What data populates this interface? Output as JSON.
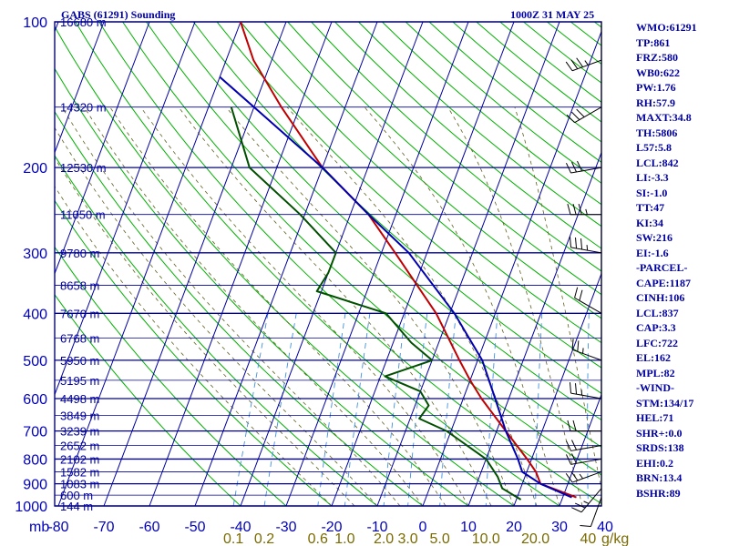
{
  "header": {
    "station": "GABS (61291) Sounding",
    "time": "1000Z 31 MAY 25"
  },
  "axis": {
    "pressure_unit_label": "mb",
    "mixing_ratio_unit": "g/kg"
  },
  "colors": {
    "frame": "#0000a0",
    "dry_adiabat": "#00b000",
    "moist_adiabat": "#606020",
    "mixing_ratio": "#4090e0",
    "temperature": "#c00000",
    "dewpoint": "#005000",
    "parcel": "#0000b0"
  },
  "indices": [
    "WMO:61291",
    "TP:861",
    "FRZ:580",
    "WB0:622",
    "PW:1.76",
    "RH:57.9",
    "MAXT:34.8",
    "TH:5806",
    "L57:5.8",
    "LCL:842",
    "LI:-3.3",
    "SI:-1.0",
    "TT:47",
    "KI:34",
    "SW:216",
    "EI:-1.6",
    "-PARCEL-",
    "CAPE:1187",
    "CINH:106",
    "LCL:837",
    "CAP:3.3",
    "LFC:722",
    "EL:162",
    "MPL:82",
    "-WIND-",
    "STM:134/17",
    "HEL:71",
    "SHR+:0.0",
    "SRDS:138",
    "EHI:0.2",
    "BRN:13.4",
    "BSHR:89"
  ],
  "chart_data": {
    "type": "line",
    "title": "GABS (61291) Sounding",
    "subtitle": "1000Z 31 MAY 25",
    "xlabel": "",
    "ylabel": "mb",
    "x_ticks": [
      -80,
      -70,
      -60,
      -50,
      -40,
      -30,
      -20,
      -10,
      0,
      10,
      20,
      30,
      40
    ],
    "x_tick_labels": [
      "-80",
      "-70",
      "-60",
      "-50",
      "-40",
      "-30",
      "-20",
      "-10",
      "0",
      "10",
      "20",
      "30",
      "40"
    ],
    "mixing_ratio_labels": [
      {
        "w": 0.1,
        "label": "0.1"
      },
      {
        "w": 0.2,
        "label": "0.2"
      },
      {
        "w": 0.6,
        "label": "0.6"
      },
      {
        "w": 1.0,
        "label": "1.0"
      },
      {
        "w": 2.0,
        "label": "2.0"
      },
      {
        "w": 3.0,
        "label": "3.0"
      },
      {
        "w": 5.0,
        "label": "5.0"
      },
      {
        "w": 10.0,
        "label": "10.0"
      },
      {
        "w": 20.0,
        "label": "20.0"
      },
      {
        "w": 40.0,
        "label": "40"
      }
    ],
    "pressure_ticks": [
      100,
      200,
      300,
      400,
      500,
      600,
      700,
      800,
      900,
      1000
    ],
    "height_labels": [
      {
        "p": 100,
        "label": "16680 m"
      },
      {
        "p": 150,
        "label": "14320 m"
      },
      {
        "p": 200,
        "label": "12530 m"
      },
      {
        "p": 250,
        "label": "11050 m"
      },
      {
        "p": 300,
        "label": "9780 m"
      },
      {
        "p": 350,
        "label": "8658 m"
      },
      {
        "p": 400,
        "label": "7670 m"
      },
      {
        "p": 450,
        "label": "6768 m"
      },
      {
        "p": 500,
        "label": "5950 m"
      },
      {
        "p": 550,
        "label": "5195 m"
      },
      {
        "p": 600,
        "label": "4498 m"
      },
      {
        "p": 650,
        "label": "3849 m"
      },
      {
        "p": 700,
        "label": "3239 m"
      },
      {
        "p": 750,
        "label": "2652 m"
      },
      {
        "p": 800,
        "label": "2102 m"
      },
      {
        "p": 850,
        "label": "1582 m"
      },
      {
        "p": 900,
        "label": "1083 m"
      },
      {
        "p": 950,
        "label": "600 m"
      },
      {
        "p": 1000,
        "label": "144 m"
      }
    ],
    "series": [
      {
        "name": "",
        "role": "temperature",
        "points": [
          {
            "p": 100,
            "t": -80
          },
          {
            "p": 120,
            "t": -74
          },
          {
            "p": 150,
            "t": -64
          },
          {
            "p": 200,
            "t": -50
          },
          {
            "p": 250,
            "t": -36
          },
          {
            "p": 300,
            "t": -27
          },
          {
            "p": 400,
            "t": -13
          },
          {
            "p": 500,
            "t": -4
          },
          {
            "p": 550,
            "t": 0
          },
          {
            "p": 600,
            "t": 4
          },
          {
            "p": 700,
            "t": 12
          },
          {
            "p": 800,
            "t": 19
          },
          {
            "p": 850,
            "t": 22
          },
          {
            "p": 900,
            "t": 24
          },
          {
            "p": 960,
            "t": 33
          }
        ]
      },
      {
        "name": "",
        "role": "dewpoint",
        "points": [
          {
            "p": 150,
            "t": -75
          },
          {
            "p": 200,
            "t": -66
          },
          {
            "p": 250,
            "t": -51
          },
          {
            "p": 300,
            "t": -40
          },
          {
            "p": 330,
            "t": -40
          },
          {
            "p": 360,
            "t": -41
          },
          {
            "p": 400,
            "t": -24
          },
          {
            "p": 460,
            "t": -16
          },
          {
            "p": 500,
            "t": -10
          },
          {
            "p": 540,
            "t": -19
          },
          {
            "p": 580,
            "t": -10
          },
          {
            "p": 620,
            "t": -7
          },
          {
            "p": 660,
            "t": -8
          },
          {
            "p": 700,
            "t": -1
          },
          {
            "p": 800,
            "t": 10
          },
          {
            "p": 870,
            "t": 14
          },
          {
            "p": 920,
            "t": 16
          },
          {
            "p": 970,
            "t": 21
          }
        ]
      },
      {
        "name": "",
        "role": "parcel",
        "points": [
          {
            "p": 130,
            "t": -80
          },
          {
            "p": 150,
            "t": -70
          },
          {
            "p": 200,
            "t": -50
          },
          {
            "p": 250,
            "t": -36
          },
          {
            "p": 300,
            "t": -24
          },
          {
            "p": 400,
            "t": -9
          },
          {
            "p": 500,
            "t": 1
          },
          {
            "p": 600,
            "t": 7
          },
          {
            "p": 700,
            "t": 12
          },
          {
            "p": 800,
            "t": 17
          },
          {
            "p": 850,
            "t": 19
          },
          {
            "p": 900,
            "t": 24
          },
          {
            "p": 960,
            "t": 32
          }
        ]
      }
    ],
    "wind_barbs": [
      {
        "p": 960,
        "dir": 200,
        "spd": 10
      },
      {
        "p": 920,
        "dir": 220,
        "spd": 15
      },
      {
        "p": 850,
        "dir": 250,
        "spd": 15
      },
      {
        "p": 800,
        "dir": 260,
        "spd": 20
      },
      {
        "p": 750,
        "dir": 260,
        "spd": 20
      },
      {
        "p": 700,
        "dir": 270,
        "spd": 20
      },
      {
        "p": 600,
        "dir": 280,
        "spd": 15
      },
      {
        "p": 500,
        "dir": 290,
        "spd": 15
      },
      {
        "p": 400,
        "dir": 300,
        "spd": 20
      },
      {
        "p": 300,
        "dir": 280,
        "spd": 25
      },
      {
        "p": 250,
        "dir": 270,
        "spd": 25
      },
      {
        "p": 200,
        "dir": 260,
        "spd": 30
      },
      {
        "p": 150,
        "dir": 240,
        "spd": 30
      },
      {
        "p": 120,
        "dir": 250,
        "spd": 25
      }
    ],
    "xlim": [
      -80,
      40
    ],
    "ylim": [
      100,
      1000
    ],
    "y_scale": "log",
    "skew": true,
    "grid": true
  }
}
